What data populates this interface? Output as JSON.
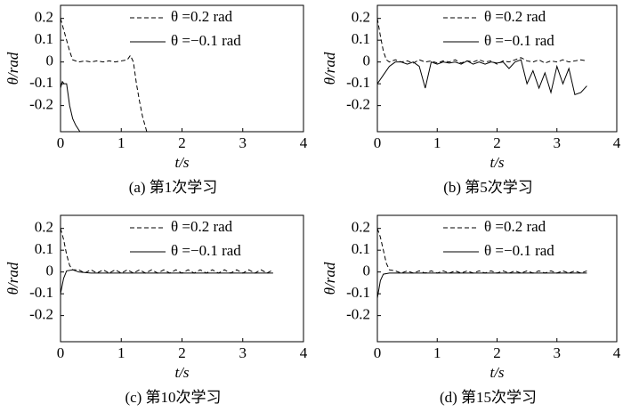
{
  "chart_data": [
    {
      "type": "line",
      "title": "(a) 第1次学习",
      "xlabel": "t/s",
      "ylabel": "θ/rad",
      "xlim": [
        0,
        4
      ],
      "ylim": [
        -0.32,
        0.26
      ],
      "xticks": [
        0,
        1,
        2,
        3,
        4
      ],
      "yticks": [
        -0.2,
        -0.1,
        0,
        0.1,
        0.2
      ],
      "legend": "upper right",
      "series": [
        {
          "name": "θ =0.2 rad",
          "color": "#000000",
          "dash": true,
          "x": [
            0,
            0.05,
            0.1,
            0.15,
            0.2,
            0.3,
            0.4,
            0.5,
            0.6,
            0.7,
            0.8,
            0.9,
            1.0,
            1.1,
            1.15,
            1.2,
            1.25,
            1.3,
            1.35,
            1.42
          ],
          "values": [
            0.2,
            0.15,
            0.1,
            0.05,
            0.01,
            0,
            0.005,
            0,
            0.005,
            0,
            0.005,
            0,
            0.005,
            0.01,
            0.03,
            0,
            -0.1,
            -0.18,
            -0.25,
            -0.32
          ]
        },
        {
          "name": "θ =−0.1 rad",
          "color": "#000000",
          "dash": false,
          "x": [
            0,
            0.03,
            0.06,
            0.1,
            0.15,
            0.2,
            0.25,
            0.32
          ],
          "values": [
            -0.12,
            -0.09,
            -0.1,
            -0.1,
            -0.2,
            -0.26,
            -0.29,
            -0.32
          ]
        }
      ]
    },
    {
      "type": "line",
      "title": "(b) 第5次学习",
      "xlabel": "t/s",
      "ylabel": "θ/rad",
      "xlim": [
        0,
        4
      ],
      "ylim": [
        -0.32,
        0.26
      ],
      "xticks": [
        0,
        1,
        2,
        3,
        4
      ],
      "yticks": [
        -0.2,
        -0.1,
        0,
        0.1,
        0.2
      ],
      "legend": "upper right",
      "series": [
        {
          "name": "θ =0.2 rad",
          "color": "#000000",
          "dash": true,
          "x": [
            0,
            0.05,
            0.1,
            0.15,
            0.2,
            0.3,
            0.4,
            0.5,
            0.6,
            0.7,
            0.8,
            0.9,
            1.0,
            1.1,
            1.2,
            1.3,
            1.4,
            1.5,
            1.6,
            1.7,
            1.8,
            1.9,
            2.0,
            2.1,
            2.2,
            2.3,
            2.4,
            2.5,
            2.6,
            2.7,
            2.8,
            2.9,
            3.0,
            3.1,
            3.2,
            3.3,
            3.4,
            3.5
          ],
          "values": [
            0.2,
            0.12,
            0.05,
            0.01,
            0,
            0.01,
            0,
            0.005,
            -0.005,
            0.01,
            0,
            0.005,
            -0.005,
            0.005,
            0,
            0.01,
            -0.005,
            0.005,
            0,
            0.01,
            0,
            0.005,
            -0.01,
            0.005,
            0,
            0.01,
            0.02,
            0.005,
            0,
            0.01,
            -0.005,
            0.005,
            0,
            0.01,
            0,
            0.005,
            0.01,
            0.005
          ]
        },
        {
          "name": "θ =−0.1 rad",
          "color": "#000000",
          "dash": false,
          "x": [
            0,
            0.1,
            0.2,
            0.3,
            0.4,
            0.5,
            0.6,
            0.7,
            0.8,
            0.9,
            1.0,
            1.1,
            1.2,
            1.3,
            1.4,
            1.5,
            1.6,
            1.7,
            1.8,
            1.9,
            2.0,
            2.1,
            2.2,
            2.3,
            2.4,
            2.5,
            2.6,
            2.7,
            2.8,
            2.9,
            3.0,
            3.1,
            3.2,
            3.3,
            3.4,
            3.5
          ],
          "values": [
            -0.1,
            -0.06,
            -0.02,
            0,
            0,
            -0.01,
            0,
            -0.02,
            -0.12,
            0,
            -0.01,
            0,
            -0.005,
            0,
            -0.01,
            0.005,
            -0.01,
            0,
            -0.01,
            0,
            -0.005,
            0,
            -0.03,
            0,
            0.01,
            -0.1,
            -0.04,
            -0.12,
            -0.05,
            -0.14,
            -0.02,
            -0.1,
            -0.03,
            -0.15,
            -0.14,
            -0.11
          ]
        }
      ]
    },
    {
      "type": "line",
      "title": "(c) 第10次学习",
      "xlabel": "t/s",
      "ylabel": "θ/rad",
      "xlim": [
        0,
        4
      ],
      "ylim": [
        -0.32,
        0.26
      ],
      "xticks": [
        0,
        1,
        2,
        3,
        4
      ],
      "yticks": [
        -0.2,
        -0.1,
        0,
        0.1,
        0.2
      ],
      "legend": "upper right",
      "series": [
        {
          "name": "θ =0.2 rad",
          "color": "#000000",
          "dash": true,
          "x": [
            0,
            0.05,
            0.1,
            0.15,
            0.2,
            0.3,
            0.4,
            0.5,
            0.6,
            0.7,
            0.8,
            0.9,
            1.0,
            1.1,
            1.2,
            1.3,
            1.4,
            1.5,
            1.6,
            1.7,
            1.8,
            1.9,
            2.0,
            2.1,
            2.2,
            2.3,
            2.4,
            2.5,
            2.6,
            2.7,
            2.8,
            2.9,
            3.0,
            3.1,
            3.2,
            3.3,
            3.4,
            3.5
          ],
          "values": [
            0.2,
            0.15,
            0.08,
            0.03,
            0.01,
            0.01,
            -0.005,
            0.01,
            -0.005,
            0.01,
            -0.005,
            0.01,
            -0.005,
            0.01,
            -0.005,
            0.01,
            -0.005,
            0.01,
            -0.005,
            0.01,
            -0.005,
            0.01,
            -0.005,
            0.01,
            -0.005,
            0.01,
            -0.005,
            0.01,
            -0.005,
            0.01,
            -0.005,
            0.01,
            -0.005,
            0.01,
            -0.005,
            0.01,
            -0.005,
            0.01
          ]
        },
        {
          "name": "θ =−0.1 rad",
          "color": "#000000",
          "dash": false,
          "x": [
            0,
            0.05,
            0.1,
            0.2,
            0.3,
            0.5,
            1,
            1.5,
            2,
            2.5,
            3,
            3.5
          ],
          "values": [
            -0.1,
            -0.03,
            0.005,
            0.01,
            0,
            -0.005,
            -0.005,
            -0.005,
            -0.005,
            -0.005,
            -0.005,
            -0.005
          ]
        }
      ]
    },
    {
      "type": "line",
      "title": "(d) 第15次学习",
      "xlabel": "t/s",
      "ylabel": "θ/rad",
      "xlim": [
        0,
        4
      ],
      "ylim": [
        -0.32,
        0.26
      ],
      "xticks": [
        0,
        1,
        2,
        3,
        4
      ],
      "yticks": [
        -0.2,
        -0.1,
        0,
        0.1,
        0.2
      ],
      "legend": "upper right",
      "series": [
        {
          "name": "θ =0.2 rad",
          "color": "#000000",
          "dash": true,
          "x": [
            0,
            0.05,
            0.1,
            0.15,
            0.2,
            0.3,
            0.4,
            0.5,
            0.6,
            0.7,
            0.8,
            0.9,
            1.0,
            1.1,
            1.2,
            1.3,
            1.4,
            1.5,
            1.6,
            1.7,
            1.8,
            1.9,
            2.0,
            2.1,
            2.2,
            2.3,
            2.4,
            2.5,
            2.6,
            2.7,
            2.8,
            2.9,
            3.0,
            3.1,
            3.2,
            3.3,
            3.4,
            3.5
          ],
          "values": [
            0.2,
            0.16,
            0.1,
            0.04,
            0.01,
            0.005,
            -0.005,
            0.005,
            -0.005,
            0.005,
            -0.005,
            0.005,
            -0.005,
            0.005,
            -0.005,
            0.005,
            -0.005,
            0.005,
            -0.005,
            0.005,
            -0.005,
            0.005,
            -0.005,
            0.005,
            -0.005,
            0.005,
            -0.005,
            0.005,
            -0.005,
            0.005,
            -0.005,
            0.005,
            -0.005,
            0.005,
            -0.005,
            0.005,
            -0.005,
            0.005
          ]
        },
        {
          "name": "θ =−0.1 rad",
          "color": "#000000",
          "dash": false,
          "x": [
            0,
            0.05,
            0.1,
            0.2,
            0.3,
            0.5,
            1,
            1.5,
            2,
            2.5,
            3,
            3.5
          ],
          "values": [
            -0.12,
            -0.04,
            -0.01,
            -0.005,
            -0.005,
            -0.005,
            -0.005,
            -0.005,
            -0.005,
            -0.005,
            -0.005,
            -0.005
          ]
        }
      ]
    }
  ]
}
